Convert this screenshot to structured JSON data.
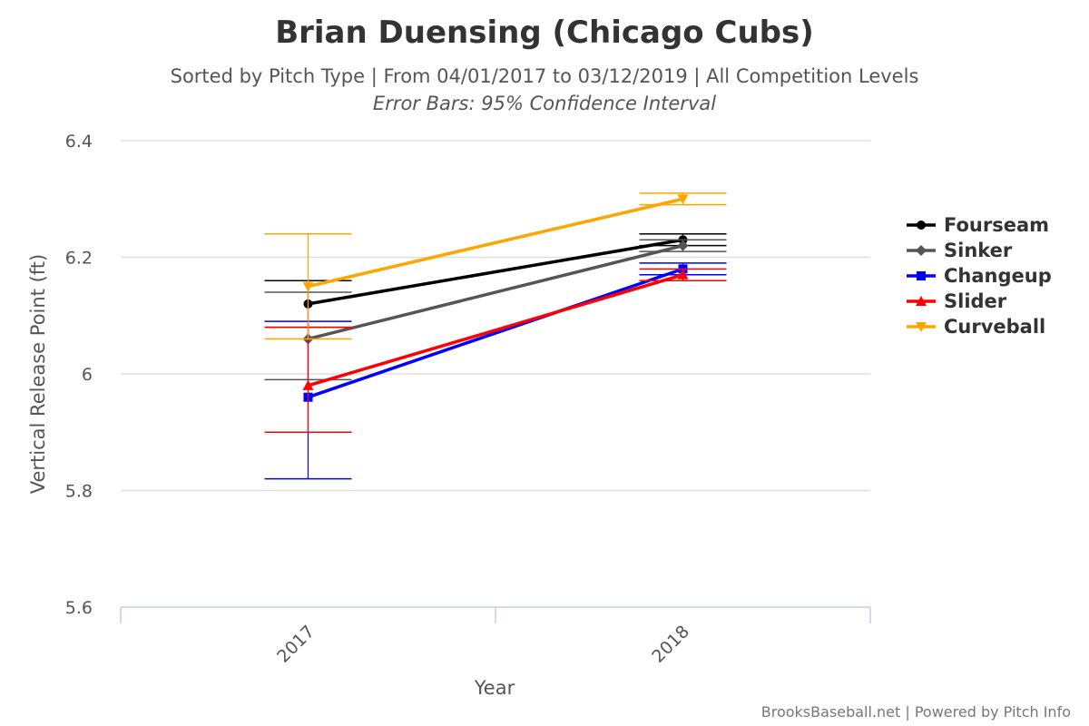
{
  "chart_data": {
    "type": "line",
    "title": "Brian Duensing (Chicago Cubs)",
    "subtitle": "Sorted by Pitch Type | From 04/01/2017 to 03/12/2019 | All Competition Levels",
    "subtitle2": "Error Bars: 95% Confidence Interval",
    "xlabel": "Year",
    "ylabel": "Vertical Release Point (ft)",
    "categories": [
      "2017",
      "2018"
    ],
    "ylim": [
      5.6,
      6.4
    ],
    "yticks": [
      {
        "value": 5.6,
        "label": "5.6"
      },
      {
        "value": 5.8,
        "label": "5.8"
      },
      {
        "value": 6.0,
        "label": "6"
      },
      {
        "value": 6.2,
        "label": "6.2"
      },
      {
        "value": 6.4,
        "label": "6.4"
      }
    ],
    "grid": true,
    "legend_position": "right",
    "series": [
      {
        "name": "Fourseam",
        "color": "#000000",
        "marker": "circle",
        "values": [
          6.12,
          6.23
        ],
        "err_low": [
          6.08,
          6.22
        ],
        "err_high": [
          6.16,
          6.24
        ]
      },
      {
        "name": "Sinker",
        "color": "#555555",
        "marker": "diamond",
        "values": [
          6.06,
          6.22
        ],
        "err_low": [
          5.99,
          6.21
        ],
        "err_high": [
          6.14,
          6.23
        ]
      },
      {
        "name": "Changeup",
        "color": "#0000ff",
        "marker": "square",
        "values": [
          5.96,
          6.18
        ],
        "err_low": [
          5.82,
          6.17
        ],
        "err_high": [
          6.09,
          6.19
        ]
      },
      {
        "name": "Slider",
        "color": "#ff0000",
        "marker": "triangle",
        "values": [
          5.98,
          6.17
        ],
        "err_low": [
          5.9,
          6.16
        ],
        "err_high": [
          6.08,
          6.18
        ]
      },
      {
        "name": "Curveball",
        "color": "#ffa500",
        "marker": "triangle-down",
        "values": [
          6.15,
          6.3
        ],
        "err_low": [
          6.06,
          6.29
        ],
        "err_high": [
          6.24,
          6.31
        ]
      }
    ]
  },
  "credits": "BrooksBaseball.net | Powered by Pitch Info"
}
